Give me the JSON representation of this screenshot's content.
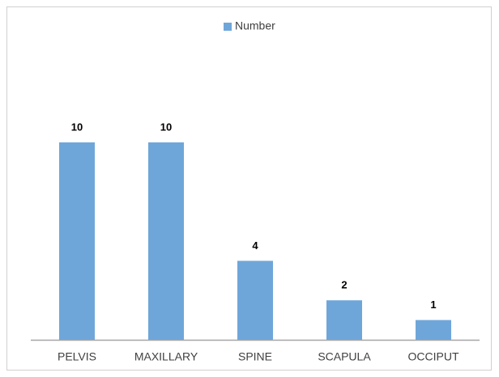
{
  "chart_data": {
    "type": "bar",
    "categories": [
      "PELVIS",
      "MAXILLARY",
      "SPINE",
      "SCAPULA",
      "OCCIPUT"
    ],
    "series": [
      {
        "name": "Number",
        "color": "#6fa6da",
        "values": [
          10,
          10,
          4,
          2,
          1
        ]
      }
    ],
    "legend": "top"
  }
}
